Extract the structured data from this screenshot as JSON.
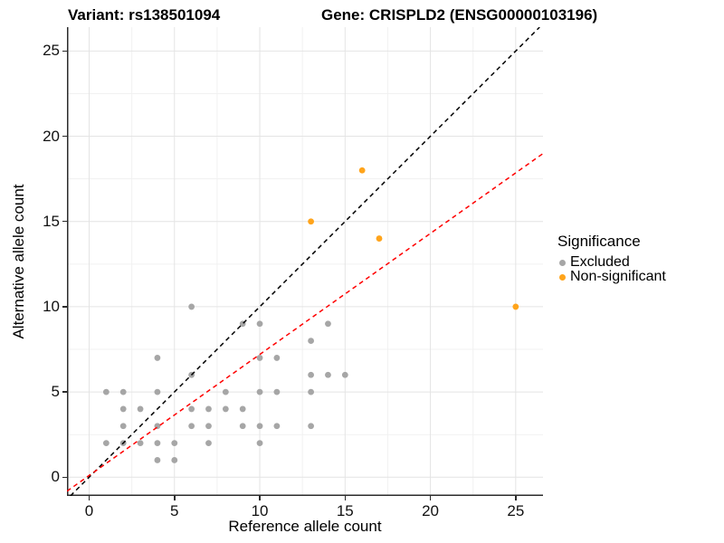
{
  "chart_data": {
    "type": "scatter",
    "title_left": "Variant: rs138501094",
    "title_right": "Gene: CRISPLD2 (ENSG00000103196)",
    "xlabel": "Reference allele count",
    "ylabel": "Alternative allele count",
    "xlim": [
      -1.3,
      26.6
    ],
    "ylim": [
      -1.1,
      26.4
    ],
    "x_ticks": [
      0,
      5,
      10,
      15,
      20,
      25
    ],
    "y_ticks": [
      0,
      5,
      10,
      15,
      20,
      25
    ],
    "x_minor_ticks": [
      2.5,
      7.5,
      12.5,
      17.5,
      22.5
    ],
    "y_minor_ticks": [
      2.5,
      7.5,
      12.5,
      17.5,
      22.5
    ],
    "grid": true,
    "legend": {
      "title": "Significance",
      "position": "right",
      "entries": [
        {
          "label": "Excluded",
          "color": "#A6A6A6"
        },
        {
          "label": "Non-significant",
          "color": "#FFA41B"
        }
      ]
    },
    "series": [
      {
        "name": "Excluded",
        "color": "#A6A6A6",
        "points": [
          [
            1,
            2
          ],
          [
            1,
            5
          ],
          [
            2,
            2
          ],
          [
            2,
            3
          ],
          [
            2,
            4
          ],
          [
            2,
            5
          ],
          [
            3,
            2
          ],
          [
            3,
            4
          ],
          [
            4,
            1
          ],
          [
            4,
            2
          ],
          [
            4,
            3
          ],
          [
            4,
            5
          ],
          [
            4,
            7
          ],
          [
            5,
            1
          ],
          [
            5,
            2
          ],
          [
            6,
            3
          ],
          [
            6,
            4
          ],
          [
            6,
            6
          ],
          [
            6,
            10
          ],
          [
            7,
            2
          ],
          [
            7,
            3
          ],
          [
            7,
            4
          ],
          [
            8,
            4
          ],
          [
            8,
            5
          ],
          [
            9,
            3
          ],
          [
            9,
            4
          ],
          [
            9,
            9
          ],
          [
            10,
            2
          ],
          [
            10,
            3
          ],
          [
            10,
            5
          ],
          [
            10,
            7
          ],
          [
            10,
            9
          ],
          [
            11,
            3
          ],
          [
            11,
            5
          ],
          [
            11,
            7
          ],
          [
            13,
            3
          ],
          [
            13,
            5
          ],
          [
            13,
            6
          ],
          [
            13,
            8
          ],
          [
            14,
            6
          ],
          [
            14,
            9
          ],
          [
            15,
            6
          ]
        ]
      },
      {
        "name": "Non-significant",
        "color": "#FFA41B",
        "points": [
          [
            13,
            15
          ],
          [
            16,
            18
          ],
          [
            17,
            14
          ],
          [
            25,
            10
          ]
        ]
      }
    ],
    "lines": [
      {
        "name": "identity-line",
        "color": "#000000",
        "dash": "dashed",
        "slope": 1,
        "intercept": 0
      },
      {
        "name": "expected-ratio-line",
        "color": "#FF0000",
        "dash": "dashed",
        "slope": 0.71,
        "intercept": 0.1
      }
    ],
    "point_radius": 3.4,
    "colors": {
      "grid_major": "#E4E4E4",
      "grid_minor": "#F1F1F1",
      "axis": "#2B2B2B"
    }
  }
}
